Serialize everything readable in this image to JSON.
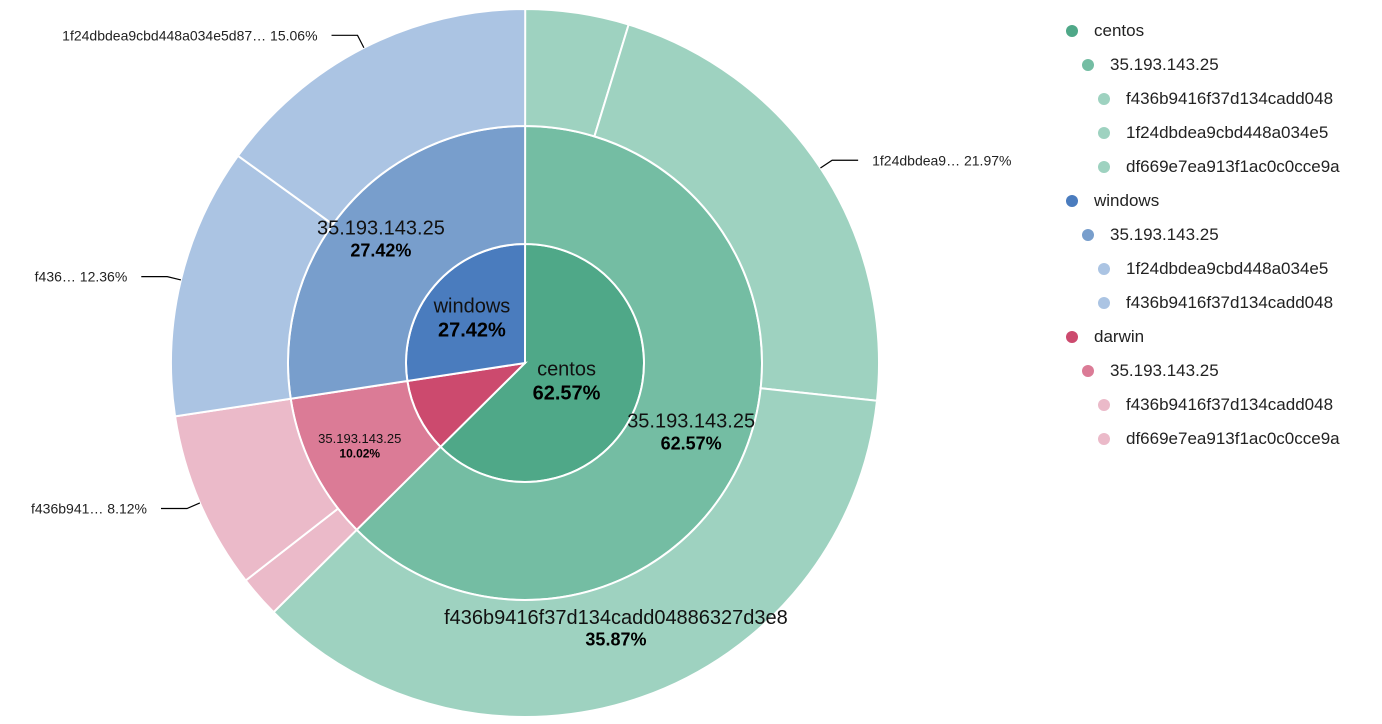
{
  "chart_data": {
    "type": "sunburst",
    "root": [
      {
        "name": "centos",
        "percent": 62.57,
        "color": "#4fa888",
        "children": [
          {
            "name": "35.193.143.25",
            "percent": 62.57,
            "color": "#74bda3",
            "children": [
              {
                "name": "df669e7ea913f1ac0c0cce9a",
                "percent": 4.73,
                "color": "#9ed2c0"
              },
              {
                "name": "1f24dbdea9cbd448a034e5",
                "percent": 21.97,
                "color": "#9ed2c0",
                "label": "1f24dbdea9…  21.97%"
              },
              {
                "name": "f436b9416f37d134cadd048",
                "percent": 35.87,
                "color": "#9ed2c0",
                "label": "f436b9416f37d134cadd04886327d3e8",
                "label_pct": "35.87%"
              }
            ]
          }
        ]
      },
      {
        "name": "darwin",
        "percent": 10.02,
        "color": "#cc4a6e",
        "children": [
          {
            "name": "35.193.143.25",
            "percent": 10.02,
            "color": "#db7b96",
            "children": [
              {
                "name": "df669e7ea913f1ac0c0cce9a",
                "percent": 1.9,
                "color": "#ebbac9"
              },
              {
                "name": "f436b9416f37d134cadd048",
                "percent": 8.12,
                "color": "#ebbac9",
                "label": "f436b941…  8.12%"
              }
            ]
          }
        ]
      },
      {
        "name": "windows",
        "percent": 27.42,
        "color": "#4a7cbe",
        "children": [
          {
            "name": "35.193.143.25",
            "percent": 27.42,
            "color": "#789ecc",
            "children": [
              {
                "name": "f436b9416f37d134cadd048",
                "percent": 12.36,
                "color": "#abc4e3",
                "label": "f436…  12.36%"
              },
              {
                "name": "1f24dbdea9cbd448a034e5",
                "percent": 15.06,
                "color": "#abc4e3",
                "label": "1f24dbdea9cbd448a034e5d87…  15.06%"
              }
            ]
          }
        ]
      }
    ],
    "legend": [
      {
        "label": "centos",
        "level": 0,
        "color": "#4fa888"
      },
      {
        "label": "35.193.143.25",
        "level": 1,
        "color": "#74bda3"
      },
      {
        "label": "f436b9416f37d134cadd048",
        "level": 2,
        "color": "#9ed2c0"
      },
      {
        "label": "1f24dbdea9cbd448a034e5",
        "level": 2,
        "color": "#9ed2c0"
      },
      {
        "label": "df669e7ea913f1ac0c0cce9a",
        "level": 2,
        "color": "#9ed2c0"
      },
      {
        "label": "windows",
        "level": 0,
        "color": "#4a7cbe"
      },
      {
        "label": "35.193.143.25",
        "level": 1,
        "color": "#789ecc"
      },
      {
        "label": "1f24dbdea9cbd448a034e5",
        "level": 2,
        "color": "#abc4e3"
      },
      {
        "label": "f436b9416f37d134cadd048",
        "level": 2,
        "color": "#abc4e3"
      },
      {
        "label": "darwin",
        "level": 0,
        "color": "#cc4a6e"
      },
      {
        "label": "35.193.143.25",
        "level": 1,
        "color": "#db7b96"
      },
      {
        "label": "f436b9416f37d134cadd048",
        "level": 2,
        "color": "#ebbac9"
      },
      {
        "label": "df669e7ea913f1ac0c0cce9a",
        "level": 2,
        "color": "#ebbac9"
      }
    ],
    "legend_placement": "right"
  }
}
